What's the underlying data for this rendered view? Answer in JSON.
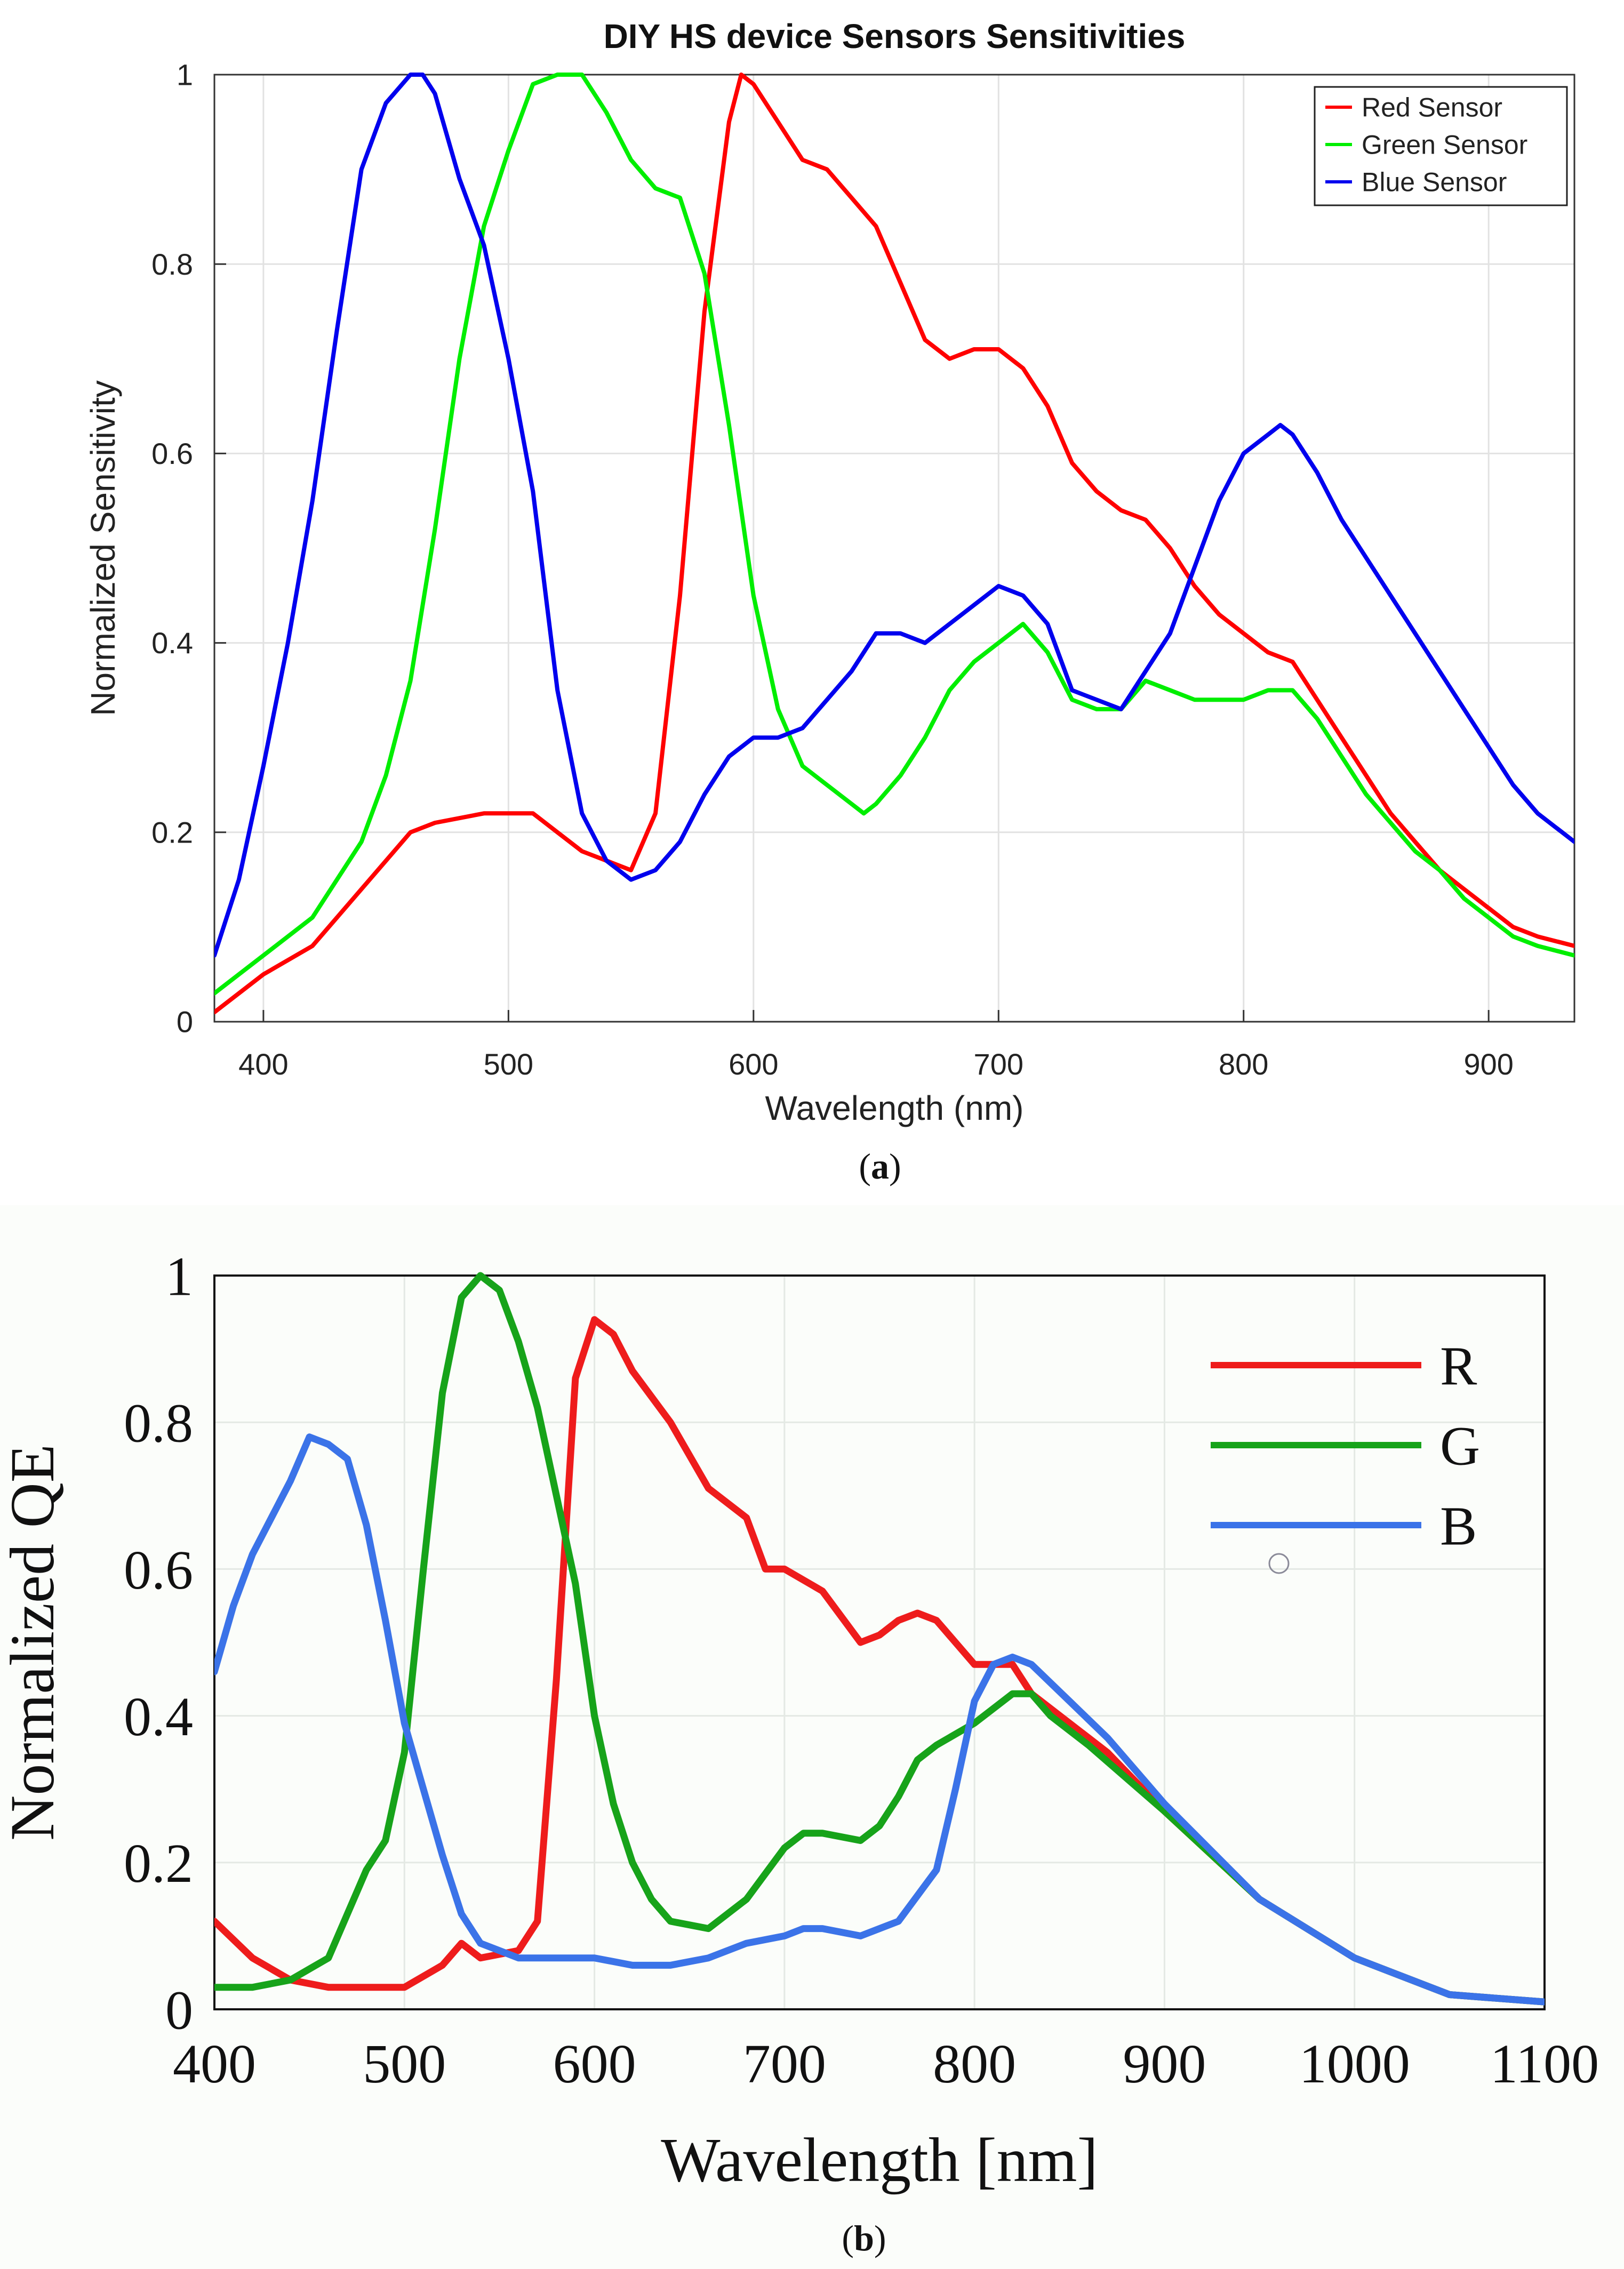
{
  "chart_data": [
    {
      "panel": "(a)",
      "panel_letter": "a",
      "type": "line",
      "title": "DIY HS device Sensors Sensitivities",
      "xlabel": "Wavelength (nm)",
      "ylabel": "Normalized Sensitivity",
      "xlim": [
        380,
        935
      ],
      "ylim": [
        0,
        1
      ],
      "grid": true,
      "legend_position": "top-right",
      "xticks": [
        400,
        500,
        600,
        700,
        800,
        900
      ],
      "yticks": [
        0,
        0.2,
        0.4,
        0.6,
        0.8,
        1
      ],
      "ytick_labels": [
        "0",
        "0.2",
        "0.4",
        "0.6",
        "0.8",
        "1"
      ],
      "series": [
        {
          "name": "Red Sensor",
          "color": "#ff0000",
          "x": [
            380,
            400,
            420,
            440,
            460,
            470,
            490,
            510,
            520,
            530,
            550,
            560,
            570,
            580,
            590,
            595,
            600,
            610,
            620,
            630,
            640,
            650,
            660,
            670,
            680,
            690,
            700,
            710,
            720,
            730,
            740,
            750,
            760,
            770,
            780,
            790,
            800,
            810,
            820,
            830,
            840,
            850,
            860,
            870,
            880,
            890,
            900,
            910,
            920,
            935
          ],
          "y": [
            0.01,
            0.05,
            0.08,
            0.14,
            0.2,
            0.21,
            0.22,
            0.22,
            0.2,
            0.18,
            0.16,
            0.22,
            0.45,
            0.75,
            0.95,
            1.0,
            0.99,
            0.95,
            0.91,
            0.9,
            0.87,
            0.84,
            0.78,
            0.72,
            0.7,
            0.71,
            0.71,
            0.69,
            0.65,
            0.59,
            0.56,
            0.54,
            0.53,
            0.5,
            0.46,
            0.43,
            0.41,
            0.39,
            0.38,
            0.34,
            0.3,
            0.26,
            0.22,
            0.19,
            0.16,
            0.14,
            0.12,
            0.1,
            0.09,
            0.08
          ]
        },
        {
          "name": "Green Sensor",
          "color": "#00ee00",
          "x": [
            380,
            400,
            420,
            440,
            450,
            460,
            470,
            480,
            490,
            500,
            510,
            520,
            530,
            540,
            550,
            560,
            570,
            580,
            590,
            600,
            610,
            620,
            630,
            640,
            645,
            650,
            660,
            670,
            680,
            690,
            700,
            710,
            720,
            730,
            740,
            750,
            760,
            770,
            780,
            790,
            800,
            810,
            820,
            830,
            840,
            850,
            860,
            870,
            880,
            890,
            900,
            910,
            920,
            935
          ],
          "y": [
            0.03,
            0.07,
            0.11,
            0.19,
            0.26,
            0.36,
            0.52,
            0.7,
            0.84,
            0.92,
            0.99,
            1.0,
            1.0,
            0.96,
            0.91,
            0.88,
            0.87,
            0.79,
            0.63,
            0.45,
            0.33,
            0.27,
            0.25,
            0.23,
            0.22,
            0.23,
            0.26,
            0.3,
            0.35,
            0.38,
            0.4,
            0.42,
            0.39,
            0.34,
            0.33,
            0.33,
            0.36,
            0.35,
            0.34,
            0.34,
            0.34,
            0.35,
            0.35,
            0.32,
            0.28,
            0.24,
            0.21,
            0.18,
            0.16,
            0.13,
            0.11,
            0.09,
            0.08,
            0.07
          ]
        },
        {
          "name": "Blue Sensor",
          "color": "#0000ee",
          "x": [
            380,
            390,
            400,
            410,
            420,
            430,
            440,
            450,
            460,
            465,
            470,
            480,
            490,
            500,
            510,
            520,
            530,
            540,
            550,
            560,
            570,
            580,
            590,
            600,
            610,
            620,
            630,
            640,
            650,
            660,
            670,
            680,
            690,
            700,
            710,
            720,
            730,
            740,
            750,
            760,
            770,
            780,
            790,
            800,
            810,
            815,
            820,
            830,
            840,
            850,
            860,
            870,
            880,
            890,
            900,
            910,
            920,
            935
          ],
          "y": [
            0.07,
            0.15,
            0.27,
            0.4,
            0.55,
            0.73,
            0.9,
            0.97,
            1.0,
            1.0,
            0.98,
            0.89,
            0.82,
            0.7,
            0.56,
            0.35,
            0.22,
            0.17,
            0.15,
            0.16,
            0.19,
            0.24,
            0.28,
            0.3,
            0.3,
            0.31,
            0.34,
            0.37,
            0.41,
            0.41,
            0.4,
            0.42,
            0.44,
            0.46,
            0.45,
            0.42,
            0.35,
            0.34,
            0.33,
            0.37,
            0.41,
            0.48,
            0.55,
            0.6,
            0.62,
            0.63,
            0.62,
            0.58,
            0.53,
            0.49,
            0.45,
            0.41,
            0.37,
            0.33,
            0.29,
            0.25,
            0.22,
            0.19
          ]
        }
      ]
    },
    {
      "panel": "(b)",
      "panel_letter": "b",
      "type": "line",
      "title": "",
      "xlabel": "Wavelength [nm]",
      "ylabel": "Normalized QE",
      "xlim": [
        400,
        1100
      ],
      "ylim": [
        0,
        1
      ],
      "grid": true,
      "legend_position": "top-right",
      "xticks": [
        400,
        500,
        600,
        700,
        800,
        900,
        1000,
        1100
      ],
      "yticks": [
        0,
        0.2,
        0.4,
        0.6,
        0.8,
        1
      ],
      "ytick_labels": [
        "0",
        "0.2",
        "0.4",
        "0.6",
        "0.8",
        "1"
      ],
      "series": [
        {
          "name": "R",
          "color": "#ee1c1c",
          "x": [
            400,
            420,
            440,
            460,
            480,
            500,
            520,
            530,
            540,
            560,
            570,
            580,
            590,
            600,
            610,
            620,
            640,
            660,
            680,
            690,
            700,
            720,
            740,
            750,
            760,
            770,
            780,
            800,
            820,
            830,
            850,
            870,
            900,
            950,
            1000,
            1050,
            1100
          ],
          "y": [
            0.12,
            0.07,
            0.04,
            0.03,
            0.03,
            0.03,
            0.06,
            0.09,
            0.07,
            0.08,
            0.12,
            0.45,
            0.86,
            0.94,
            0.92,
            0.87,
            0.8,
            0.71,
            0.67,
            0.6,
            0.6,
            0.57,
            0.5,
            0.51,
            0.53,
            0.54,
            0.53,
            0.47,
            0.47,
            0.43,
            0.39,
            0.35,
            0.27,
            0.15,
            0.07,
            0.02,
            0.01
          ]
        },
        {
          "name": "G",
          "color": "#17a31a",
          "x": [
            400,
            420,
            440,
            460,
            470,
            480,
            490,
            500,
            510,
            520,
            530,
            540,
            550,
            560,
            570,
            580,
            590,
            600,
            610,
            620,
            630,
            640,
            660,
            680,
            700,
            710,
            720,
            740,
            750,
            760,
            770,
            780,
            800,
            820,
            830,
            840,
            860,
            900,
            950,
            1000,
            1050,
            1100
          ],
          "y": [
            0.03,
            0.03,
            0.04,
            0.07,
            0.13,
            0.19,
            0.23,
            0.35,
            0.6,
            0.84,
            0.97,
            1.0,
            0.98,
            0.91,
            0.82,
            0.7,
            0.58,
            0.4,
            0.28,
            0.2,
            0.15,
            0.12,
            0.11,
            0.15,
            0.22,
            0.24,
            0.24,
            0.23,
            0.25,
            0.29,
            0.34,
            0.36,
            0.39,
            0.43,
            0.43,
            0.4,
            0.36,
            0.27,
            0.15,
            0.07,
            0.02,
            0.01
          ]
        },
        {
          "name": "B",
          "color": "#3b73e8",
          "x": [
            400,
            410,
            420,
            440,
            450,
            460,
            470,
            480,
            490,
            500,
            510,
            520,
            530,
            540,
            560,
            580,
            600,
            620,
            640,
            660,
            680,
            700,
            710,
            720,
            740,
            760,
            780,
            790,
            800,
            810,
            820,
            830,
            850,
            870,
            900,
            950,
            1000,
            1050,
            1100
          ],
          "y": [
            0.46,
            0.55,
            0.62,
            0.72,
            0.78,
            0.77,
            0.75,
            0.66,
            0.53,
            0.39,
            0.3,
            0.21,
            0.13,
            0.09,
            0.07,
            0.07,
            0.07,
            0.06,
            0.06,
            0.07,
            0.09,
            0.1,
            0.11,
            0.11,
            0.1,
            0.12,
            0.19,
            0.3,
            0.42,
            0.47,
            0.48,
            0.47,
            0.42,
            0.37,
            0.28,
            0.15,
            0.07,
            0.02,
            0.01
          ]
        }
      ]
    }
  ]
}
